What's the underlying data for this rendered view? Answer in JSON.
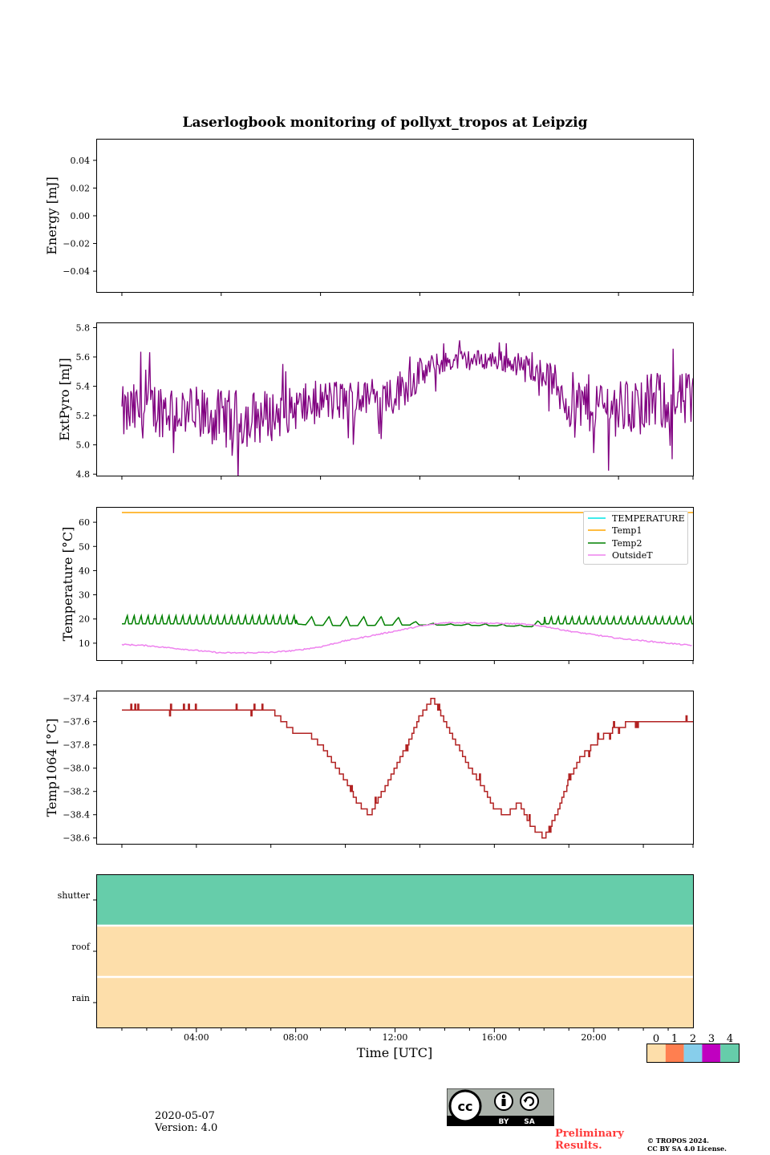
{
  "figure_title": "Laserlogbook monitoring of pollyxt_tropos at Leipzig",
  "footer": {
    "date": "2020-05-07",
    "version": "Version: 4.0",
    "preliminary_1": "Preliminary",
    "preliminary_2": "Results.",
    "copyright_1": "© TROPOS 2024.",
    "copyright_2": "CC BY SA 4.0 License.",
    "license_badge": [
      "BY",
      "SA"
    ]
  },
  "chart_data": [
    {
      "type": "line",
      "panel": "energy",
      "ylabel": "Energy [mJ]",
      "ylim": [
        -0.055,
        0.055
      ],
      "yticks": [
        0.04,
        0.02,
        0.0,
        -0.02,
        -0.04
      ],
      "yticklabels": [
        "0.04",
        "0.02",
        "0.00",
        "−0.02",
        "−0.04"
      ],
      "xrange_hours": [
        1,
        24
      ],
      "series": []
    },
    {
      "type": "line",
      "panel": "extpyro",
      "ylabel": "ExtPyro [mJ]",
      "ylim": [
        4.79,
        5.83
      ],
      "yticks": [
        5.8,
        5.6,
        5.4,
        5.2,
        5.0,
        4.8
      ],
      "yticklabels": [
        "5.8",
        "5.6",
        "5.4",
        "5.2",
        "5.0",
        "4.8"
      ],
      "color": "#800080",
      "series": [
        {
          "name": "ExtPyro",
          "x": [
            1.0,
            2.0,
            3.0,
            4.0,
            5.0,
            6.0,
            7.0,
            8.0,
            9.0,
            10.0,
            11.0,
            12.0,
            13.0,
            14.0,
            15.0,
            16.0,
            17.0,
            18.0,
            19.0,
            20.0,
            21.0,
            22.0,
            23.0,
            24.0
          ],
          "mean": [
            5.2,
            5.25,
            5.25,
            5.2,
            5.18,
            5.18,
            5.2,
            5.25,
            5.3,
            5.3,
            5.32,
            5.35,
            5.48,
            5.57,
            5.58,
            5.58,
            5.55,
            5.5,
            5.3,
            5.28,
            5.25,
            5.28,
            5.3,
            5.3
          ],
          "spread": [
            0.2,
            0.2,
            0.2,
            0.2,
            0.2,
            0.2,
            0.18,
            0.15,
            0.15,
            0.15,
            0.12,
            0.15,
            0.12,
            0.07,
            0.07,
            0.07,
            0.08,
            0.1,
            0.2,
            0.2,
            0.2,
            0.2,
            0.2,
            0.2
          ]
        }
      ]
    },
    {
      "type": "line",
      "panel": "temperature",
      "ylabel": "Temperature [°C]",
      "ylim": [
        3,
        66
      ],
      "yticks": [
        60,
        50,
        40,
        30,
        20,
        10
      ],
      "yticklabels": [
        "60",
        "50",
        "40",
        "30",
        "20",
        "10"
      ],
      "legend_position": "upper right",
      "series": [
        {
          "name": "TEMPERATURE",
          "color": "#00e5e5",
          "x": [],
          "y": []
        },
        {
          "name": "Temp1",
          "color": "#ffa500",
          "x": [
            1,
            24
          ],
          "y": [
            64,
            64
          ]
        },
        {
          "name": "Temp2",
          "color": "#008000",
          "x": [
            1,
            3,
            5,
            7,
            8,
            8.5,
            10,
            12,
            13,
            14,
            16,
            17,
            17.5,
            18,
            20,
            22,
            24
          ],
          "base": [
            18,
            18,
            18,
            18,
            18,
            17.5,
            17.2,
            17.5,
            17.5,
            17.5,
            17.2,
            17,
            16.8,
            18,
            18,
            18,
            18
          ],
          "peak": [
            21.5,
            21.5,
            21.5,
            21.5,
            21.5,
            21,
            21,
            21,
            18.5,
            18,
            18,
            17.5,
            17.5,
            21,
            21,
            21,
            21
          ]
        },
        {
          "name": "OutsideT",
          "color": "#ee82ee",
          "x": [
            1,
            2,
            3,
            4,
            5,
            6,
            7,
            8,
            9,
            10,
            11,
            12,
            13,
            14,
            15,
            16,
            17,
            18,
            19,
            20,
            21,
            22,
            23,
            24
          ],
          "y": [
            9.5,
            9,
            8,
            7,
            6,
            6,
            6.2,
            7,
            8.5,
            11,
            13,
            15,
            17,
            18.5,
            18.5,
            18.2,
            18,
            17,
            15,
            13.5,
            12,
            11,
            10,
            9
          ]
        }
      ]
    },
    {
      "type": "line",
      "panel": "temp1064",
      "ylabel": "Temp1064 [°C]",
      "ylim": [
        -38.65,
        -37.34
      ],
      "yticks": [
        -37.4,
        -37.6,
        -37.8,
        -38.0,
        -38.2,
        -38.4,
        -38.6
      ],
      "yticklabels": [
        "−37.4",
        "−37.6",
        "−37.8",
        "−38.0",
        "−38.2",
        "−38.4",
        "−38.6"
      ],
      "color": "#b22222",
      "series": [
        {
          "name": "Temp1064",
          "x": [
            1.0,
            2.0,
            3.0,
            4.0,
            5.0,
            6.0,
            7.0,
            7.5,
            8.0,
            8.5,
            9.0,
            9.5,
            10.0,
            10.5,
            11.0,
            11.5,
            12.0,
            12.5,
            13.0,
            13.5,
            14.0,
            14.5,
            15.0,
            15.5,
            16.0,
            16.5,
            17.0,
            17.5,
            18.0,
            18.5,
            19.0,
            19.5,
            20.0,
            20.5,
            21.0,
            21.5,
            22.0,
            22.5,
            23.0,
            23.5,
            24.0
          ],
          "y": [
            -37.5,
            -37.5,
            -37.5,
            -37.5,
            -37.5,
            -37.5,
            -37.5,
            -37.6,
            -37.7,
            -37.7,
            -37.8,
            -37.95,
            -38.1,
            -38.3,
            -38.4,
            -38.2,
            -38.0,
            -37.8,
            -37.55,
            -37.4,
            -37.6,
            -37.8,
            -38.0,
            -38.15,
            -38.35,
            -38.4,
            -38.3,
            -38.5,
            -38.6,
            -38.4,
            -38.1,
            -37.9,
            -37.8,
            -37.7,
            -37.65,
            -37.6,
            -37.6,
            -37.6,
            -37.6,
            -37.6,
            -37.6
          ]
        }
      ]
    },
    {
      "type": "heatmap",
      "panel": "status",
      "rows": [
        "shutter",
        "roof",
        "rain"
      ],
      "values": [
        4,
        0,
        0
      ],
      "xlabel": "Time [UTC]",
      "xticklabels": [
        "04:00",
        "08:00",
        "12:00",
        "16:00",
        "20:00"
      ],
      "xticks_hours": [
        4,
        8,
        12,
        16,
        20
      ],
      "xrange_hours": [
        0,
        24
      ],
      "colorbar": {
        "ticks": [
          "0",
          "1",
          "2",
          "3",
          "4"
        ],
        "colors": [
          "#fddeaa",
          "#ff7f50",
          "#87ceeb",
          "#c000c0",
          "#66cdaa"
        ]
      }
    }
  ]
}
